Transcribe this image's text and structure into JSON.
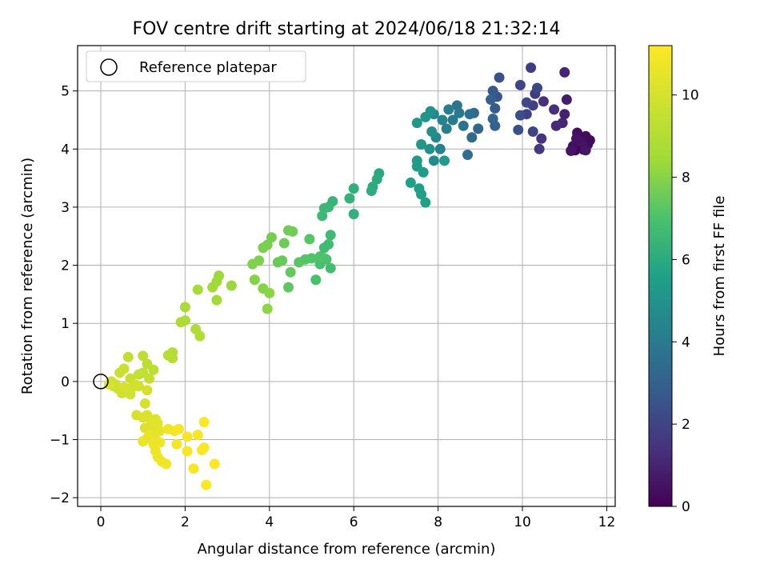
{
  "chart_data": {
    "type": "scatter",
    "title": "FOV centre drift starting at 2024/06/18 21:32:14",
    "xlabel": "Angular distance from reference (arcmin)",
    "ylabel": "Rotation from reference (arcmin)",
    "xlim": [
      -0.55,
      12.2
    ],
    "ylim": [
      -2.15,
      5.78
    ],
    "xticks": [
      0,
      2,
      4,
      6,
      8,
      10,
      12
    ],
    "yticks": [
      -2,
      -1,
      0,
      1,
      2,
      3,
      4,
      5
    ],
    "grid": true,
    "legend": {
      "placement": "top-left",
      "entries": [
        "Reference platepar"
      ]
    },
    "reference_point": {
      "name": "Reference platepar",
      "x": 0,
      "y": 0
    },
    "colorbar": {
      "label": "Hours from first FF file",
      "colormap": "viridis",
      "range": [
        0,
        11.2
      ],
      "ticks": [
        0,
        2,
        4,
        6,
        8,
        10
      ]
    },
    "series": [
      {
        "points": [
          [
            11.25,
            3.98,
            0.05
          ],
          [
            11.35,
            4.02,
            0.1
          ],
          [
            11.45,
            3.99,
            0.15
          ],
          [
            11.55,
            4.08,
            0.2
          ],
          [
            11.6,
            4.15,
            0.25
          ],
          [
            11.5,
            4.22,
            0.3
          ],
          [
            11.3,
            4.28,
            0.35
          ],
          [
            11.2,
            4.05,
            0.4
          ],
          [
            11.4,
            4.12,
            0.45
          ],
          [
            11.28,
            4.18,
            0.5
          ],
          [
            11.15,
            3.97,
            0.55
          ],
          [
            11.5,
            3.98,
            0.6
          ],
          [
            11.05,
            4.85,
            0.75
          ],
          [
            11.0,
            4.6,
            0.9
          ],
          [
            10.95,
            4.45,
            1.0
          ],
          [
            11.0,
            5.32,
            1.05
          ],
          [
            10.8,
            4.4,
            1.2
          ],
          [
            10.75,
            4.68,
            1.3
          ],
          [
            10.5,
            4.82,
            1.4
          ],
          [
            10.45,
            4.18,
            1.5
          ],
          [
            10.4,
            4.0,
            1.6
          ],
          [
            10.3,
            4.95,
            1.7
          ],
          [
            10.2,
            5.4,
            1.75
          ],
          [
            10.25,
            4.75,
            1.85
          ],
          [
            10.1,
            4.6,
            1.9
          ],
          [
            10.25,
            4.3,
            2.0
          ],
          [
            9.95,
            5.1,
            2.05
          ],
          [
            10.35,
            5.05,
            2.1
          ],
          [
            10.1,
            4.8,
            2.2
          ],
          [
            9.95,
            4.58,
            2.3
          ],
          [
            9.9,
            4.33,
            2.4
          ],
          [
            9.45,
            5.23,
            2.5
          ],
          [
            9.4,
            4.9,
            2.6
          ],
          [
            9.3,
            5.0,
            2.7
          ],
          [
            9.35,
            4.7,
            2.8
          ],
          [
            9.25,
            4.85,
            2.9
          ],
          [
            9.35,
            4.4,
            3.0
          ],
          [
            9.3,
            4.52,
            3.1
          ],
          [
            8.95,
            4.35,
            3.2
          ],
          [
            8.85,
            4.62,
            3.3
          ],
          [
            8.8,
            4.2,
            3.4
          ],
          [
            8.7,
            3.9,
            3.5
          ],
          [
            8.75,
            4.6,
            3.6
          ],
          [
            8.6,
            4.4,
            3.7
          ],
          [
            8.45,
            4.75,
            3.8
          ],
          [
            8.5,
            4.62,
            3.9
          ],
          [
            8.35,
            4.5,
            4.0
          ],
          [
            8.25,
            4.68,
            4.1
          ],
          [
            8.2,
            4.35,
            4.2
          ],
          [
            8.05,
            4.0,
            4.3
          ],
          [
            8.1,
            4.5,
            4.4
          ],
          [
            7.95,
            4.2,
            4.5
          ],
          [
            7.9,
            4.6,
            4.6
          ],
          [
            7.9,
            3.8,
            4.7
          ],
          [
            7.85,
            4.3,
            4.8
          ],
          [
            7.8,
            4.0,
            4.9
          ],
          [
            7.82,
            4.65,
            5.0
          ],
          [
            7.7,
            4.55,
            5.1
          ],
          [
            7.6,
            4.08,
            5.15
          ],
          [
            7.5,
            4.45,
            5.2
          ],
          [
            8.15,
            3.8,
            5.3
          ],
          [
            7.5,
            3.8,
            5.35
          ],
          [
            7.5,
            3.7,
            5.4
          ],
          [
            7.65,
            3.6,
            5.45
          ],
          [
            7.55,
            3.32,
            5.5
          ],
          [
            7.6,
            3.22,
            5.55
          ],
          [
            7.35,
            3.42,
            5.6
          ],
          [
            7.7,
            3.08,
            5.65
          ],
          [
            6.6,
            3.58,
            5.9
          ],
          [
            6.55,
            3.48,
            6.0
          ],
          [
            6.45,
            3.35,
            6.05
          ],
          [
            6.42,
            3.28,
            6.1
          ],
          [
            6.0,
            3.32,
            6.2
          ],
          [
            6.0,
            2.88,
            6.25
          ],
          [
            5.9,
            3.15,
            6.3
          ],
          [
            5.5,
            3.1,
            6.4
          ],
          [
            5.4,
            3.0,
            6.5
          ],
          [
            5.3,
            2.98,
            6.55
          ],
          [
            5.25,
            2.85,
            6.6
          ],
          [
            5.45,
            2.52,
            6.65
          ],
          [
            5.4,
            2.36,
            6.7
          ],
          [
            5.3,
            2.3,
            6.75
          ],
          [
            5.45,
            1.95,
            6.8
          ],
          [
            5.35,
            2.1,
            6.85
          ],
          [
            5.2,
            2.02,
            6.9
          ],
          [
            5.1,
            1.75,
            6.95
          ],
          [
            5.3,
            2.12,
            7.0
          ],
          [
            5.2,
            2.15,
            7.05
          ],
          [
            5.0,
            2.12,
            7.1
          ],
          [
            4.85,
            2.1,
            7.15
          ],
          [
            4.95,
            2.45,
            7.2
          ],
          [
            4.7,
            2.05,
            7.25
          ],
          [
            4.45,
            1.62,
            7.35
          ],
          [
            4.5,
            1.88,
            7.4
          ],
          [
            4.3,
            2.08,
            7.45
          ],
          [
            4.2,
            2.05,
            7.5
          ],
          [
            4.35,
            2.38,
            7.55
          ],
          [
            4.45,
            2.6,
            7.6
          ],
          [
            4.55,
            2.58,
            7.65
          ],
          [
            4.05,
            2.48,
            7.7
          ],
          [
            3.95,
            2.35,
            7.75
          ],
          [
            3.85,
            2.3,
            7.8
          ],
          [
            3.75,
            2.08,
            7.85
          ],
          [
            3.6,
            2.02,
            7.9
          ],
          [
            3.65,
            1.75,
            7.95
          ],
          [
            3.85,
            1.6,
            8.0
          ],
          [
            4.0,
            1.52,
            8.05
          ],
          [
            3.95,
            1.25,
            8.1
          ],
          [
            3.1,
            1.65,
            8.3
          ],
          [
            2.8,
            1.82,
            8.35
          ],
          [
            2.75,
            1.72,
            8.4
          ],
          [
            2.65,
            1.62,
            8.45
          ],
          [
            2.75,
            1.4,
            8.5
          ],
          [
            2.3,
            1.58,
            8.6
          ],
          [
            2.0,
            1.28,
            8.7
          ],
          [
            2.0,
            1.05,
            8.75
          ],
          [
            1.9,
            1.02,
            8.8
          ],
          [
            2.25,
            0.9,
            8.85
          ],
          [
            2.35,
            0.78,
            8.9
          ],
          [
            1.7,
            0.5,
            9.0
          ],
          [
            1.6,
            0.45,
            9.05
          ],
          [
            1.7,
            0.4,
            9.1
          ],
          [
            1.25,
            0.2,
            9.2
          ],
          [
            1.1,
            0.3,
            9.25
          ],
          [
            1.0,
            0.44,
            9.3
          ],
          [
            0.65,
            0.42,
            9.35
          ],
          [
            1.0,
            0.15,
            9.4
          ],
          [
            0.9,
            0.12,
            9.45
          ],
          [
            1.15,
            0.05,
            9.5
          ],
          [
            0.7,
            0.05,
            9.55
          ],
          [
            0.55,
            0.22,
            9.6
          ],
          [
            0.45,
            0.15,
            9.65
          ],
          [
            0.3,
            -0.08,
            9.7
          ],
          [
            0.25,
            0.0,
            9.72
          ],
          [
            0.35,
            -0.05,
            9.75
          ],
          [
            0.4,
            -0.12,
            9.78
          ],
          [
            0.5,
            -0.2,
            9.8
          ],
          [
            0.6,
            -0.15,
            9.82
          ],
          [
            0.7,
            -0.22,
            9.85
          ],
          [
            0.75,
            -0.1,
            9.88
          ],
          [
            0.8,
            -0.05,
            9.9
          ],
          [
            0.9,
            -0.08,
            9.92
          ],
          [
            1.1,
            -0.15,
            9.95
          ],
          [
            1.05,
            -0.38,
            9.97
          ],
          [
            0.55,
            -0.1,
            10.0
          ],
          [
            0.2,
            -0.05,
            10.02
          ],
          [
            0.85,
            -0.58,
            10.05
          ],
          [
            1.0,
            -0.62,
            10.1
          ],
          [
            1.1,
            -0.58,
            10.15
          ],
          [
            1.05,
            -0.8,
            10.2
          ],
          [
            1.2,
            -0.7,
            10.25
          ],
          [
            1.3,
            -0.65,
            10.3
          ],
          [
            1.25,
            -0.85,
            10.35
          ],
          [
            1.35,
            -0.72,
            10.4
          ],
          [
            1.15,
            -0.92,
            10.45
          ],
          [
            1.4,
            -0.85,
            10.5
          ],
          [
            1.3,
            -1.0,
            10.55
          ],
          [
            1.1,
            -0.98,
            10.6
          ],
          [
            1.0,
            -1.03,
            10.65
          ],
          [
            1.25,
            -1.08,
            10.7
          ],
          [
            1.4,
            -1.05,
            10.72
          ],
          [
            1.3,
            -1.2,
            10.75
          ],
          [
            1.35,
            -1.3,
            10.78
          ],
          [
            1.45,
            -1.38,
            10.8
          ],
          [
            1.55,
            -1.42,
            10.82
          ],
          [
            1.6,
            -0.82,
            10.85
          ],
          [
            1.75,
            -0.85,
            10.9
          ],
          [
            1.8,
            -1.08,
            10.92
          ],
          [
            1.85,
            -0.82,
            10.95
          ],
          [
            2.05,
            -0.95,
            10.98
          ],
          [
            2.05,
            -1.2,
            11.0
          ],
          [
            2.2,
            -1.5,
            11.02
          ],
          [
            2.3,
            -0.92,
            11.05
          ],
          [
            2.4,
            -1.18,
            11.08
          ],
          [
            2.45,
            -1.14,
            11.1
          ],
          [
            2.45,
            -0.7,
            11.12
          ],
          [
            2.5,
            -1.78,
            11.15
          ],
          [
            2.7,
            -1.42,
            11.18
          ]
        ]
      }
    ]
  }
}
